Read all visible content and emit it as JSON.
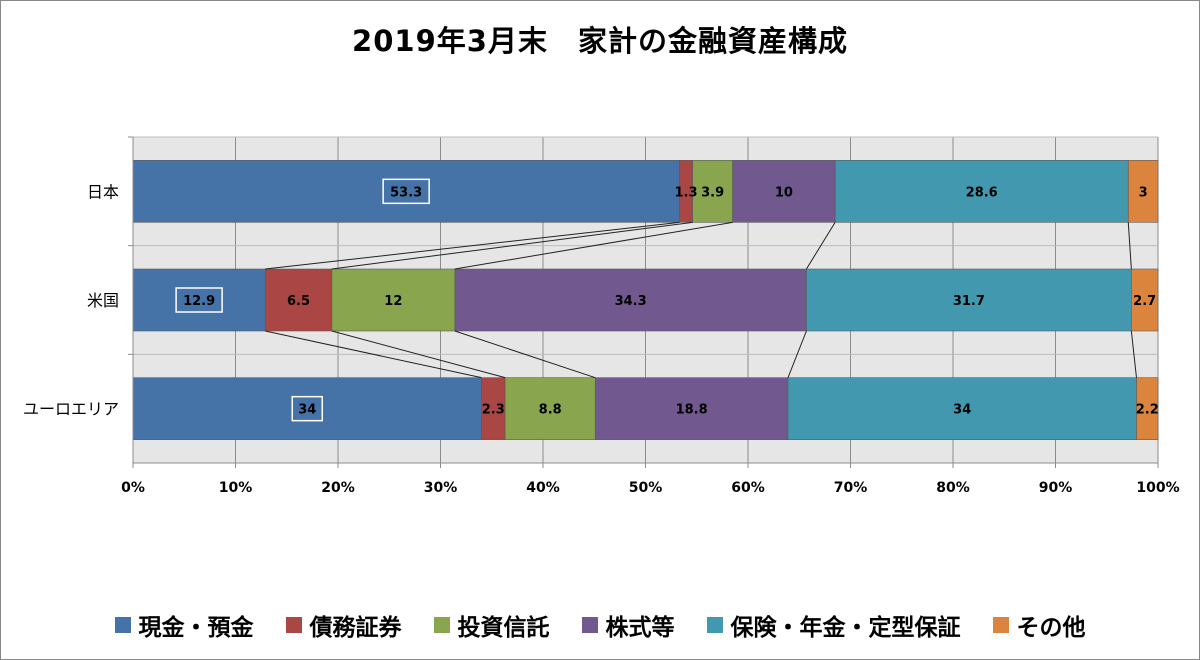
{
  "chart_data": {
    "type": "bar",
    "orientation": "horizontal",
    "stacked": "percent",
    "title": "2019年3月末　家計の金融資産構成",
    "categories": [
      "日本",
      "米国",
      "ユーロエリア"
    ],
    "series": [
      {
        "name": "現金・預金",
        "color": "#4572A7",
        "values": [
          53.3,
          12.9,
          34
        ]
      },
      {
        "name": "債務証券",
        "color": "#AA4643",
        "values": [
          1.3,
          6.5,
          2.3
        ]
      },
      {
        "name": "投資信託",
        "color": "#89A54E",
        "values": [
          3.9,
          12,
          8.8
        ]
      },
      {
        "name": "株式等",
        "color": "#71588F",
        "values": [
          10,
          34.3,
          18.8
        ]
      },
      {
        "name": "保険・年金・定型保証",
        "color": "#4198AF",
        "values": [
          28.6,
          31.7,
          34
        ]
      },
      {
        "name": "その他",
        "color": "#DB843D",
        "values": [
          3,
          2.7,
          2.2
        ]
      }
    ],
    "x_ticks": [
      "0%",
      "10%",
      "20%",
      "30%",
      "40%",
      "50%",
      "60%",
      "70%",
      "80%",
      "90%",
      "100%"
    ],
    "xlim": [
      0,
      100
    ],
    "grid": true,
    "series_lines": true,
    "legend_position": "bottom"
  }
}
